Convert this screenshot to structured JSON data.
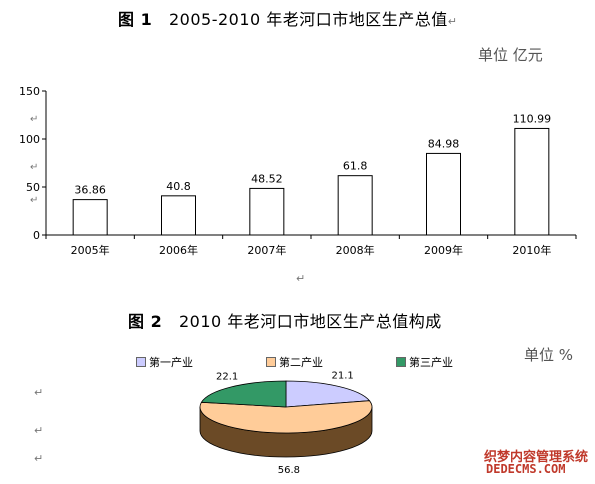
{
  "figure1": {
    "title_num": "图 1",
    "title_text": "2005-2010 年老河口市地区生产总值",
    "unit": "单位  亿元"
  },
  "figure2": {
    "title_num": "图 2",
    "title_text": "2010 年老河口市地区生产总值构成",
    "unit": "单位  %"
  },
  "paragraph_mark": "↵",
  "watermark": {
    "line1": "织梦内容管理系统",
    "line2": "DEDECMS.COM"
  },
  "colors": {
    "bar_fill": "#ffffff",
    "bar_stroke": "#000000",
    "slice_first": "#ccccff",
    "slice_second": "#ffcc99",
    "slice_third": "#339966",
    "pie_side_dark": "#6b4a26"
  },
  "chart_data": [
    {
      "type": "bar",
      "categories": [
        "2005年",
        "2006年",
        "2007年",
        "2008年",
        "2009年",
        "2010年"
      ],
      "values": [
        36.86,
        40.8,
        48.52,
        61.8,
        84.98,
        110.99
      ],
      "value_labels": [
        "36.86",
        "40.8",
        "48.52",
        "61.8",
        "84.98",
        "110.99"
      ],
      "yticks": [
        "0",
        "50",
        "100",
        "150"
      ],
      "ylim": [
        0,
        150
      ],
      "grid": false,
      "legend": "none"
    },
    {
      "type": "pie",
      "style": "3d",
      "labels": [
        "第一产业",
        "第二产业",
        "第三产业"
      ],
      "values": [
        21.1,
        56.8,
        22.1
      ],
      "value_labels": [
        "21.1",
        "56.8",
        "22.1"
      ],
      "legend": "top"
    }
  ]
}
